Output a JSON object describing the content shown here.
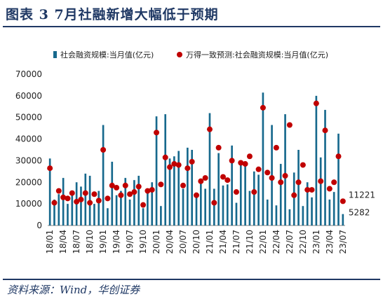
{
  "figure": {
    "title": "图表 3   7月社融新增大幅低于预期",
    "source": "资料来源：Wind，华创证券"
  },
  "colors": {
    "bar": "#17698d",
    "dot": "#c00000",
    "title": "#1f3864"
  },
  "chart_data": {
    "type": "bar",
    "legend_position": "top",
    "grid": false,
    "ylim": [
      0,
      70000
    ],
    "yticks": [
      0,
      10000,
      20000,
      30000,
      40000,
      50000,
      60000,
      70000
    ],
    "xticks": [
      "18/01",
      "18/04",
      "18/07",
      "18/10",
      "19/01",
      "19/04",
      "19/07",
      "19/10",
      "20/01",
      "20/04",
      "20/07",
      "20/10",
      "21/01",
      "21/04",
      "21/07",
      "21/10",
      "22/01",
      "22/04",
      "22/07",
      "22/10",
      "23/01",
      "23/04",
      "23/07"
    ],
    "annotations": [
      {
        "series": "社会融资规模:当月值(亿元)",
        "x": "23/07",
        "text": "5282"
      },
      {
        "series": "万得一致预测:社会融资规模:当月值(亿元)",
        "x": "23/07",
        "text": "11221"
      }
    ],
    "x": [
      "18/01",
      "18/02",
      "18/03",
      "18/04",
      "18/05",
      "18/06",
      "18/07",
      "18/08",
      "18/09",
      "18/10",
      "18/11",
      "18/12",
      "19/01",
      "19/02",
      "19/03",
      "19/04",
      "19/05",
      "19/06",
      "19/07",
      "19/08",
      "19/09",
      "19/10",
      "19/11",
      "19/12",
      "20/01",
      "20/02",
      "20/03",
      "20/04",
      "20/05",
      "20/06",
      "20/07",
      "20/08",
      "20/09",
      "20/10",
      "20/11",
      "20/12",
      "21/01",
      "21/02",
      "21/03",
      "21/04",
      "21/05",
      "21/06",
      "21/07",
      "21/08",
      "21/09",
      "21/10",
      "21/11",
      "21/12",
      "22/01",
      "22/02",
      "22/03",
      "22/04",
      "22/05",
      "22/06",
      "22/07",
      "22/08",
      "22/09",
      "22/10",
      "22/11",
      "22/12",
      "23/01",
      "23/02",
      "23/03",
      "23/04",
      "23/05",
      "23/06",
      "23/07"
    ],
    "series": [
      {
        "name": "社会融资规模:当月值(亿元)",
        "type": "bar",
        "values": [
          31000,
          12000,
          14500,
          22000,
          10000,
          14000,
          20000,
          18000,
          24000,
          23000,
          10000,
          16000,
          46500,
          8000,
          29500,
          14000,
          16000,
          22000,
          12000,
          21000,
          23000,
          8000,
          17000,
          20000,
          50500,
          9000,
          51500,
          31000,
          32000,
          34500,
          17000,
          36000,
          35000,
          14000,
          21500,
          17000,
          52000,
          17000,
          33500,
          18500,
          19000,
          37000,
          10500,
          30000,
          29000,
          16000,
          25000,
          23500,
          61500,
          12000,
          46500,
          9300,
          28500,
          51500,
          7500,
          24500,
          35000,
          9000,
          20000,
          13000,
          60000,
          31500,
          53500,
          12000,
          15500,
          42500,
          5282
        ]
      },
      {
        "name": "万得一致预测:社会融资规模:当月值(亿元)",
        "type": "scatter",
        "values": [
          26500,
          10500,
          16000,
          13000,
          12500,
          15000,
          11000,
          12000,
          15000,
          10500,
          14500,
          11500,
          35000,
          12500,
          18500,
          17500,
          14000,
          18500,
          14500,
          15500,
          18000,
          9500,
          16000,
          16500,
          43000,
          19000,
          31500,
          27000,
          28500,
          28000,
          18500,
          26500,
          29500,
          14000,
          20500,
          22000,
          44500,
          10500,
          36000,
          22500,
          21000,
          30000,
          15500,
          29000,
          28500,
          32000,
          15500,
          26000,
          54500,
          24500,
          22000,
          36000,
          20000,
          23000,
          46500,
          14000,
          20000,
          28000,
          16500,
          16500,
          56500,
          20500,
          44000,
          17000,
          20000,
          32000,
          11221
        ]
      }
    ]
  }
}
